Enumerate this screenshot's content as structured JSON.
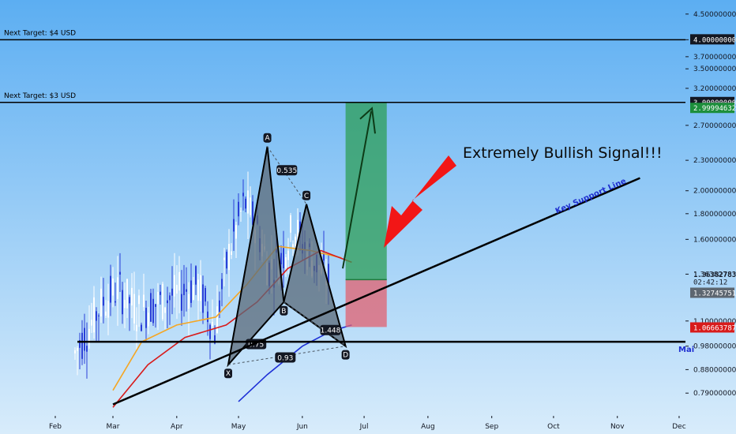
{
  "colors": {
    "bg_top": "#5caef2",
    "bg_bottom": "#d8ecfb",
    "ma_red": "#d81b1b",
    "ma_orange": "#f5a623",
    "ma_blue": "#1d2fd6",
    "candle_up": "#ffffff",
    "candle_down": "#2b3fd8",
    "harmonic_fill": "#5b6a78",
    "profit_zone": "#2e9e57",
    "stop_zone": "#e2606f",
    "badge_green": "#1d8f3c",
    "badge_gray": "#5d6670",
    "badge_red": "#d81b1b",
    "arrow_red": "#f21616",
    "support_text": "#1f2fd0"
  },
  "chart_data": {
    "type": "candlestick",
    "x_axis_ticks": [
      "Feb",
      "Mar",
      "Apr",
      "May",
      "Jun",
      "Jul",
      "Aug",
      "Sep",
      "Oct",
      "Nov",
      "Dec"
    ],
    "y_axis_ticks": [
      "4.50000000",
      "4.00000000",
      "3.70000000",
      "3.50000000",
      "3.20000000",
      "2.70000000",
      "2.30000000",
      "2.00000000",
      "1.80000000",
      "1.60000000",
      "1.36382783",
      "1.10000000",
      "0.98000000",
      "0.88000000",
      "0.79000000"
    ],
    "y_scale": "log",
    "ylim": [
      0.73,
      4.8
    ],
    "horizontal_lines": [
      {
        "label": "Next Target: $4 USD",
        "price": 4.0
      },
      {
        "label": "Next Target: $3 USD",
        "price": 3.0
      },
      {
        "label": "",
        "price": 1.0
      }
    ],
    "price_badges": [
      {
        "value": "4.00000000",
        "price": 4.0,
        "style": "black"
      },
      {
        "value": "3.00000000",
        "price": 3.0,
        "style": "black"
      },
      {
        "value": "2.99994632",
        "price": 2.92,
        "style": "green"
      },
      {
        "value": "1.36382783",
        "price": 1.36,
        "style": "plain"
      },
      {
        "value": "02:42:12",
        "price": 1.315,
        "style": "plain"
      },
      {
        "value": "1.32745751",
        "price": 1.25,
        "style": "gray"
      },
      {
        "value": "1.06663787",
        "price": 1.066,
        "style": "red"
      }
    ],
    "harmonic_pattern": {
      "points": [
        {
          "label": "X",
          "date": "2021-04-26",
          "price": 0.9
        },
        {
          "label": "A",
          "date": "2021-05-15",
          "price": 2.45
        },
        {
          "label": "B",
          "date": "2021-05-23",
          "price": 1.2
        },
        {
          "label": "C",
          "date": "2021-06-03",
          "price": 1.88
        },
        {
          "label": "D",
          "date": "2021-06-22",
          "price": 0.98
        }
      ],
      "ratios": [
        {
          "label": "0.535",
          "between": "XA-AB"
        },
        {
          "label": "0.75",
          "between": "XA-AB"
        },
        {
          "label": "1.448",
          "between": "BC-CD"
        },
        {
          "label": "0.93",
          "between": "XD"
        }
      ]
    },
    "position": {
      "entry": 1.33,
      "target": 3.0,
      "stop": 1.07,
      "start_date": "2021-06-22",
      "end_date": "2021-07-12"
    },
    "support_line": {
      "label": "Key Support Line",
      "start": {
        "date": "2021-03-01",
        "price": 0.75
      },
      "end": {
        "date": "2021-11-12",
        "price": 2.12
      }
    },
    "moving_averages": [
      {
        "color": "orange",
        "points": [
          [
            "2021-03-01",
            0.8
          ],
          [
            "2021-03-15",
            1.0
          ],
          [
            "2021-04-01",
            1.08
          ],
          [
            "2021-04-20",
            1.12
          ],
          [
            "2021-05-05",
            1.3
          ],
          [
            "2021-05-20",
            1.55
          ],
          [
            "2021-06-05",
            1.52
          ],
          [
            "2021-06-20",
            1.47
          ]
        ]
      },
      {
        "color": "red",
        "points": [
          [
            "2021-03-01",
            0.74
          ],
          [
            "2021-03-18",
            0.9
          ],
          [
            "2021-04-05",
            1.02
          ],
          [
            "2021-04-25",
            1.08
          ],
          [
            "2021-05-10",
            1.2
          ],
          [
            "2021-05-25",
            1.4
          ],
          [
            "2021-06-10",
            1.52
          ],
          [
            "2021-06-25",
            1.44
          ]
        ]
      },
      {
        "color": "blue",
        "points": [
          [
            "2021-05-01",
            0.76
          ],
          [
            "2021-05-15",
            0.86
          ],
          [
            "2021-06-01",
            0.98
          ],
          [
            "2021-06-15",
            1.05
          ],
          [
            "2021-06-25",
            1.08
          ]
        ]
      }
    ],
    "annotations": [
      "Extremely Bullish Signal!!!",
      "Key Support Line",
      "Mai"
    ]
  }
}
